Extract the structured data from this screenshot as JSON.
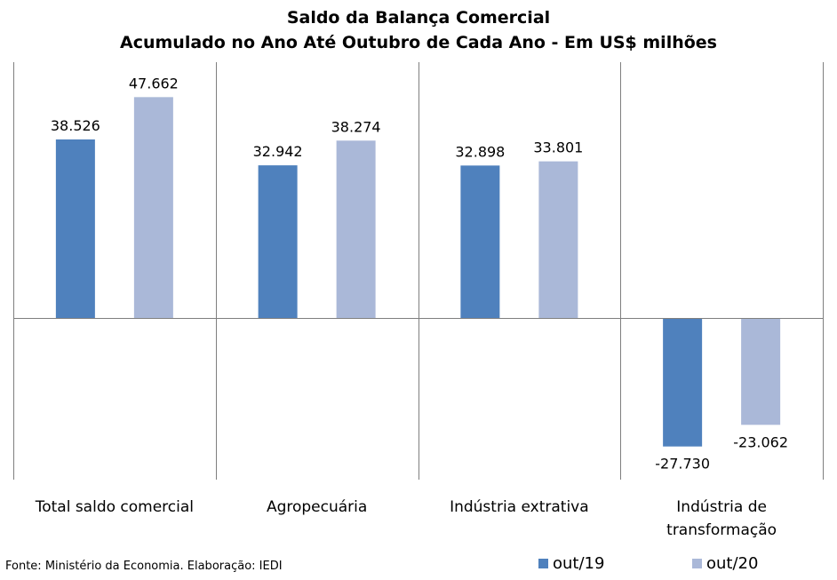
{
  "chart_data": {
    "type": "bar",
    "title": "Saldo da Balança Comercial",
    "subtitle": "Acumulado no Ano Até Outubro de Cada Ano - Em US$ milhões",
    "categories": [
      "Total saldo comercial",
      "Agropecuária",
      "Indústria extrativa",
      "Indústria de transformação"
    ],
    "category_lines": [
      [
        "Total saldo comercial"
      ],
      [
        "Agropecuária"
      ],
      [
        "Indústria extrativa"
      ],
      [
        "Indústria de",
        "transformação"
      ]
    ],
    "series": [
      {
        "name": "out/19",
        "color": "#4f81bd",
        "values": [
          38526,
          32942,
          32898,
          -27730
        ],
        "labels": [
          "38.526",
          "32.942",
          "32.898",
          "-27.730"
        ]
      },
      {
        "name": "out/20",
        "color": "#aab8d8",
        "values": [
          47662,
          38274,
          33801,
          -23062
        ],
        "labels": [
          "47.662",
          "38.274",
          "33.801",
          "-23.062"
        ]
      }
    ],
    "ylim": [
      -34000,
      52000
    ],
    "grid": false,
    "legend_position": "bottom-right"
  },
  "source": "Fonte: Ministério da Economia. Elaboração: IEDI"
}
